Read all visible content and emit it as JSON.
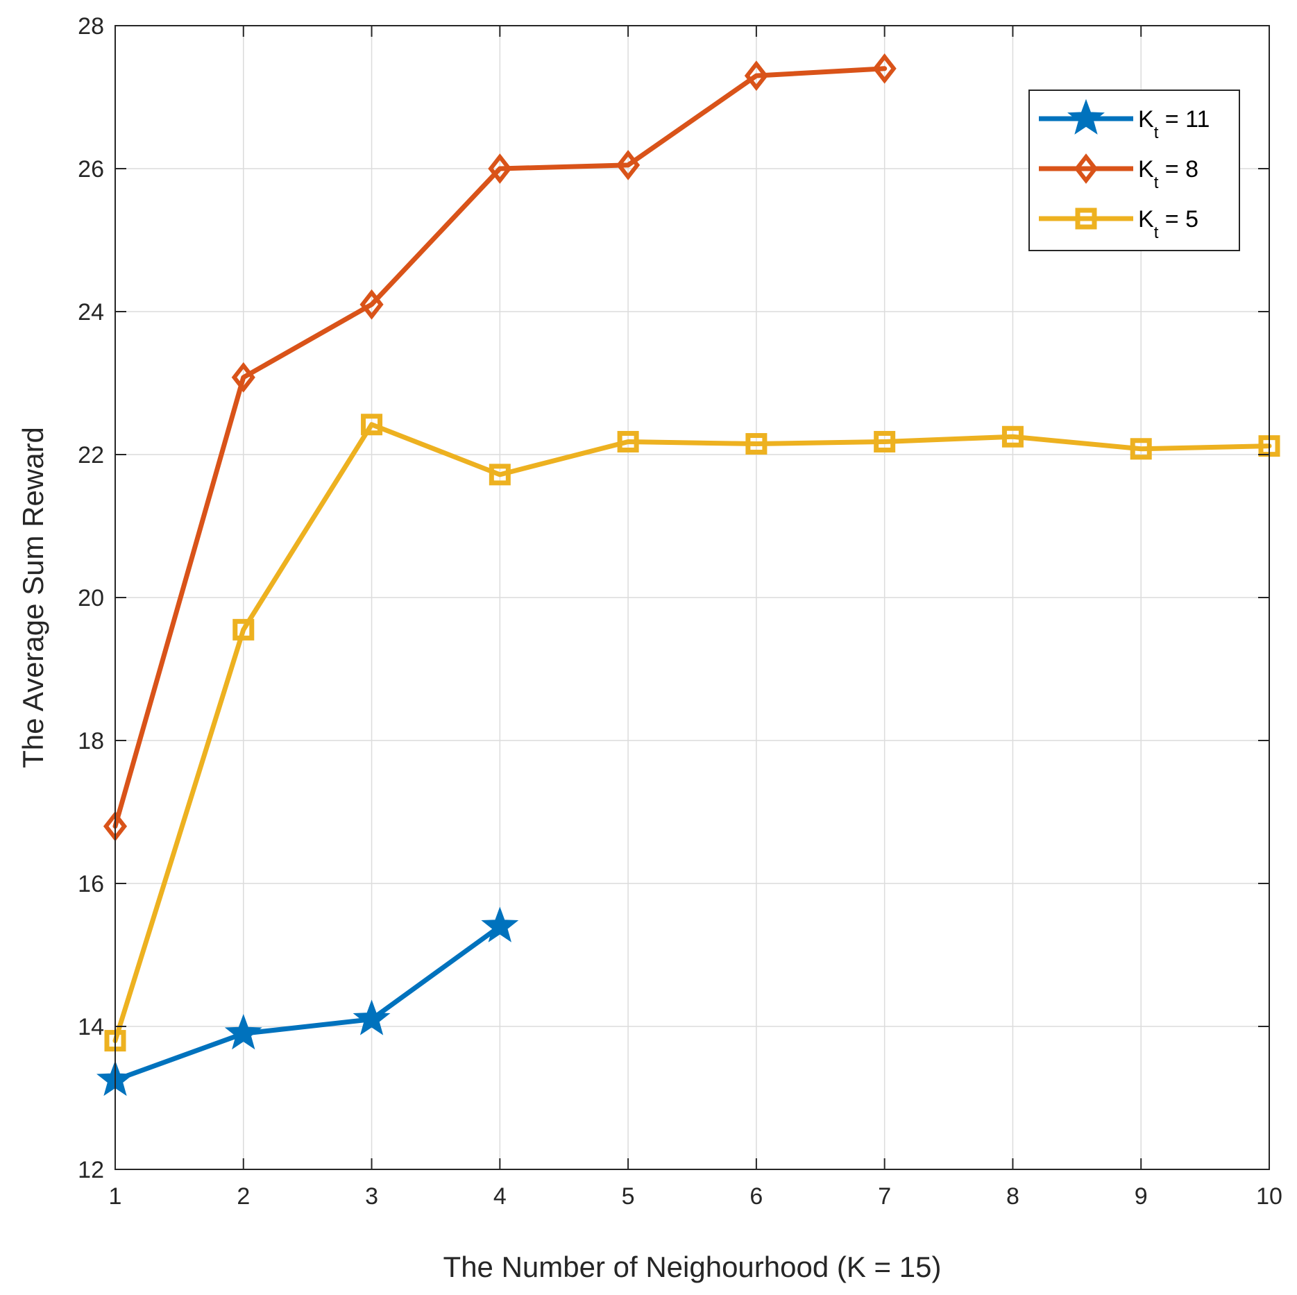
{
  "chart_data": {
    "type": "line",
    "title": "",
    "xlabel": "The Number of Neighourhood (K = 15)",
    "ylabel": "The Average Sum Reward",
    "xlim": [
      1,
      10
    ],
    "ylim": [
      12,
      28
    ],
    "xticks": [
      1,
      2,
      3,
      4,
      5,
      6,
      7,
      8,
      9,
      10
    ],
    "yticks": [
      12,
      14,
      16,
      18,
      20,
      22,
      24,
      26,
      28
    ],
    "grid": true,
    "legend_position": "top-right",
    "series": [
      {
        "name": "K_t = 11",
        "legend_main": "K",
        "legend_sub": "t",
        "legend_rest": " = 11",
        "color": "#0072BD",
        "marker": "star",
        "x": [
          1,
          2,
          3,
          4
        ],
        "y": [
          13.25,
          13.9,
          14.1,
          15.4
        ]
      },
      {
        "name": "K_t = 8",
        "legend_main": "K",
        "legend_sub": "t",
        "legend_rest": " = 8",
        "color": "#D95319",
        "marker": "diamond",
        "x": [
          1,
          2,
          3,
          4,
          5,
          6,
          7
        ],
        "y": [
          16.8,
          23.08,
          24.1,
          26.0,
          26.05,
          27.3,
          27.4
        ]
      },
      {
        "name": "K_t = 5",
        "legend_main": "K",
        "legend_sub": "t",
        "legend_rest": " = 5",
        "color": "#EDB120",
        "marker": "square",
        "x": [
          1,
          2,
          3,
          4,
          5,
          6,
          7,
          8,
          9,
          10
        ],
        "y": [
          13.8,
          19.55,
          22.42,
          21.72,
          22.18,
          22.15,
          22.18,
          22.25,
          22.08,
          22.12
        ]
      }
    ]
  }
}
